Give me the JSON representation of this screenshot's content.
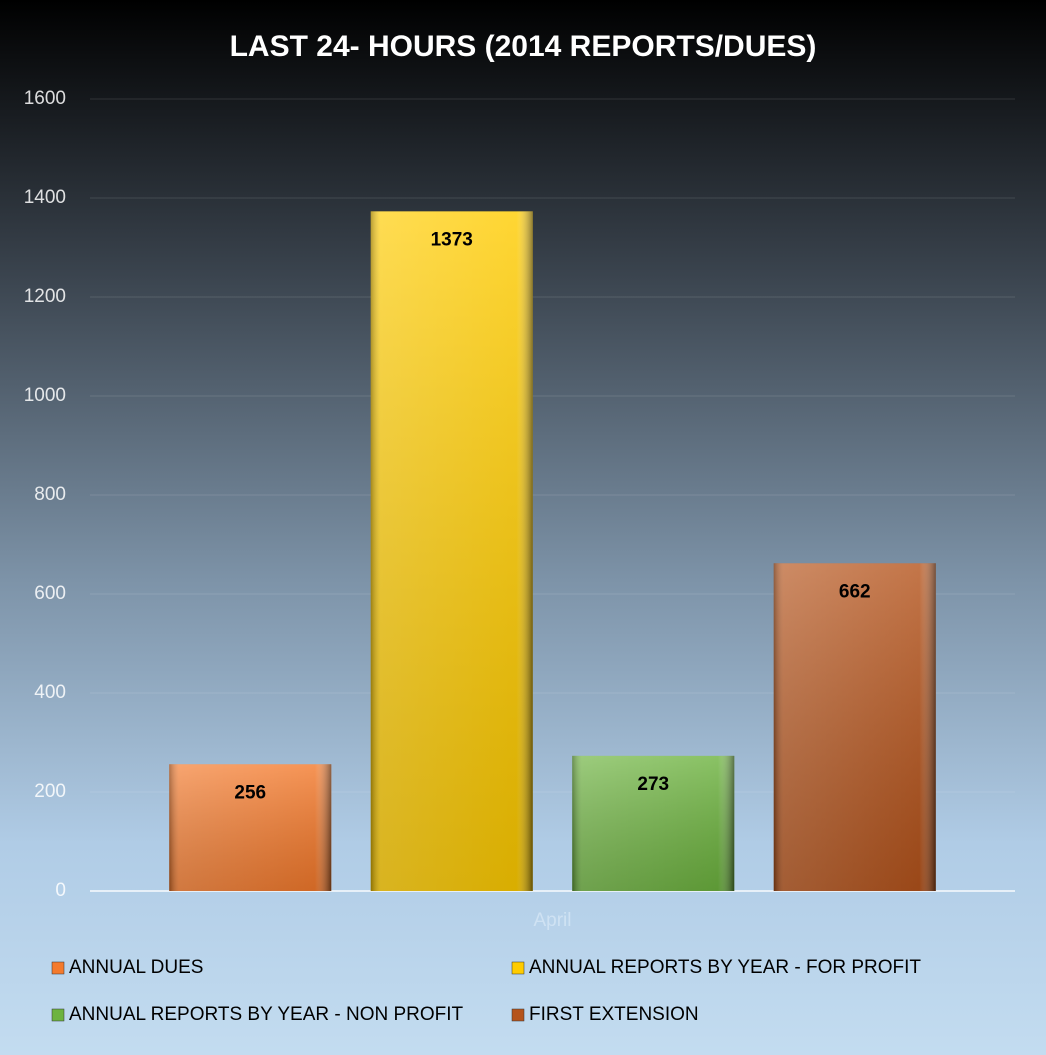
{
  "chart_data": {
    "type": "bar",
    "title": "LAST 24- HOURS (2014 REPORTS/DUES)",
    "categories": [
      "April"
    ],
    "series": [
      {
        "name": "ANNUAL DUES",
        "color": "#f47a2c",
        "values": [
          256
        ]
      },
      {
        "name": "ANNUAL REPORTS BY YEAR - FOR PROFIT",
        "color": "#ffcc00",
        "values": [
          1373
        ]
      },
      {
        "name": "ANNUAL REPORTS BY YEAR - NON PROFIT",
        "color": "#6db33f",
        "values": [
          273
        ]
      },
      {
        "name": "FIRST EXTENSION",
        "color": "#b5541c",
        "values": [
          662
        ]
      }
    ],
    "ylim": [
      0,
      1600
    ],
    "yticks": [
      0,
      200,
      400,
      600,
      800,
      1000,
      1200,
      1400,
      1600
    ],
    "grid": true,
    "legend": "bottom"
  }
}
